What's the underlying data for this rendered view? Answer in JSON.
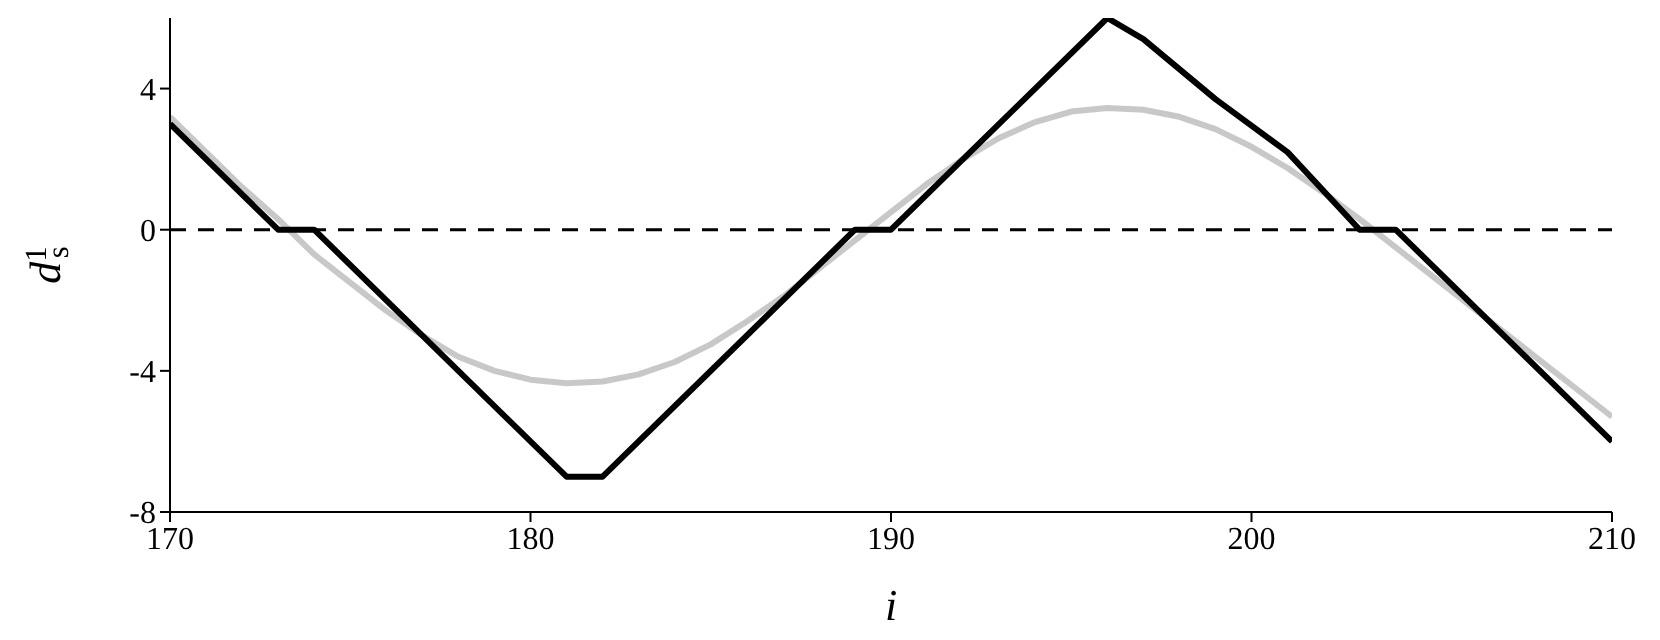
{
  "chart_data": {
    "type": "line",
    "xlabel": "i",
    "ylabel": "d$^{1}$$_{s}$",
    "xlim": [
      170,
      210
    ],
    "xticks": [
      170,
      180,
      190,
      200,
      210
    ],
    "ylim": [
      -8,
      6
    ],
    "yticks": [
      -8,
      -4,
      0,
      4
    ],
    "marker": "none",
    "ref_lines": [
      {
        "axis": "y",
        "value": 0,
        "color": "#000000",
        "line_style": "dashed"
      }
    ],
    "series": [
      {
        "color": "#c8c8c8",
        "line_style": "solid",
        "x": [
          170,
          171,
          172,
          173,
          174,
          175,
          176,
          177,
          178,
          179,
          180,
          181,
          182,
          183,
          184,
          185,
          186,
          187,
          188,
          189,
          190,
          191,
          192,
          193,
          194,
          195,
          196,
          197,
          198,
          199,
          200,
          201,
          202,
          203,
          204,
          205,
          206,
          207,
          208,
          209,
          210
        ],
        "values": [
          3.2,
          2.2,
          1.2,
          0.3,
          -0.7,
          -1.5,
          -2.3,
          -3.0,
          -3.6,
          -4.0,
          -4.25,
          -4.35,
          -4.3,
          -4.1,
          -3.75,
          -3.25,
          -2.6,
          -1.9,
          -1.1,
          -0.3,
          0.5,
          1.3,
          2.0,
          2.6,
          3.05,
          3.35,
          3.45,
          3.4,
          3.2,
          2.85,
          2.35,
          1.75,
          1.05,
          0.3,
          -0.5,
          -1.3,
          -2.1,
          -2.9,
          -3.7,
          -4.5,
          -5.3
        ]
      },
      {
        "color": "#000000",
        "line_style": "solid",
        "x": [
          170,
          173,
          174,
          181,
          182,
          189,
          190,
          196,
          197,
          199,
          201,
          203,
          204,
          210
        ],
        "values": [
          3,
          0,
          0,
          -7,
          -7,
          0,
          0,
          6,
          5.4,
          3.7,
          2.2,
          0,
          0,
          -6
        ]
      }
    ]
  }
}
